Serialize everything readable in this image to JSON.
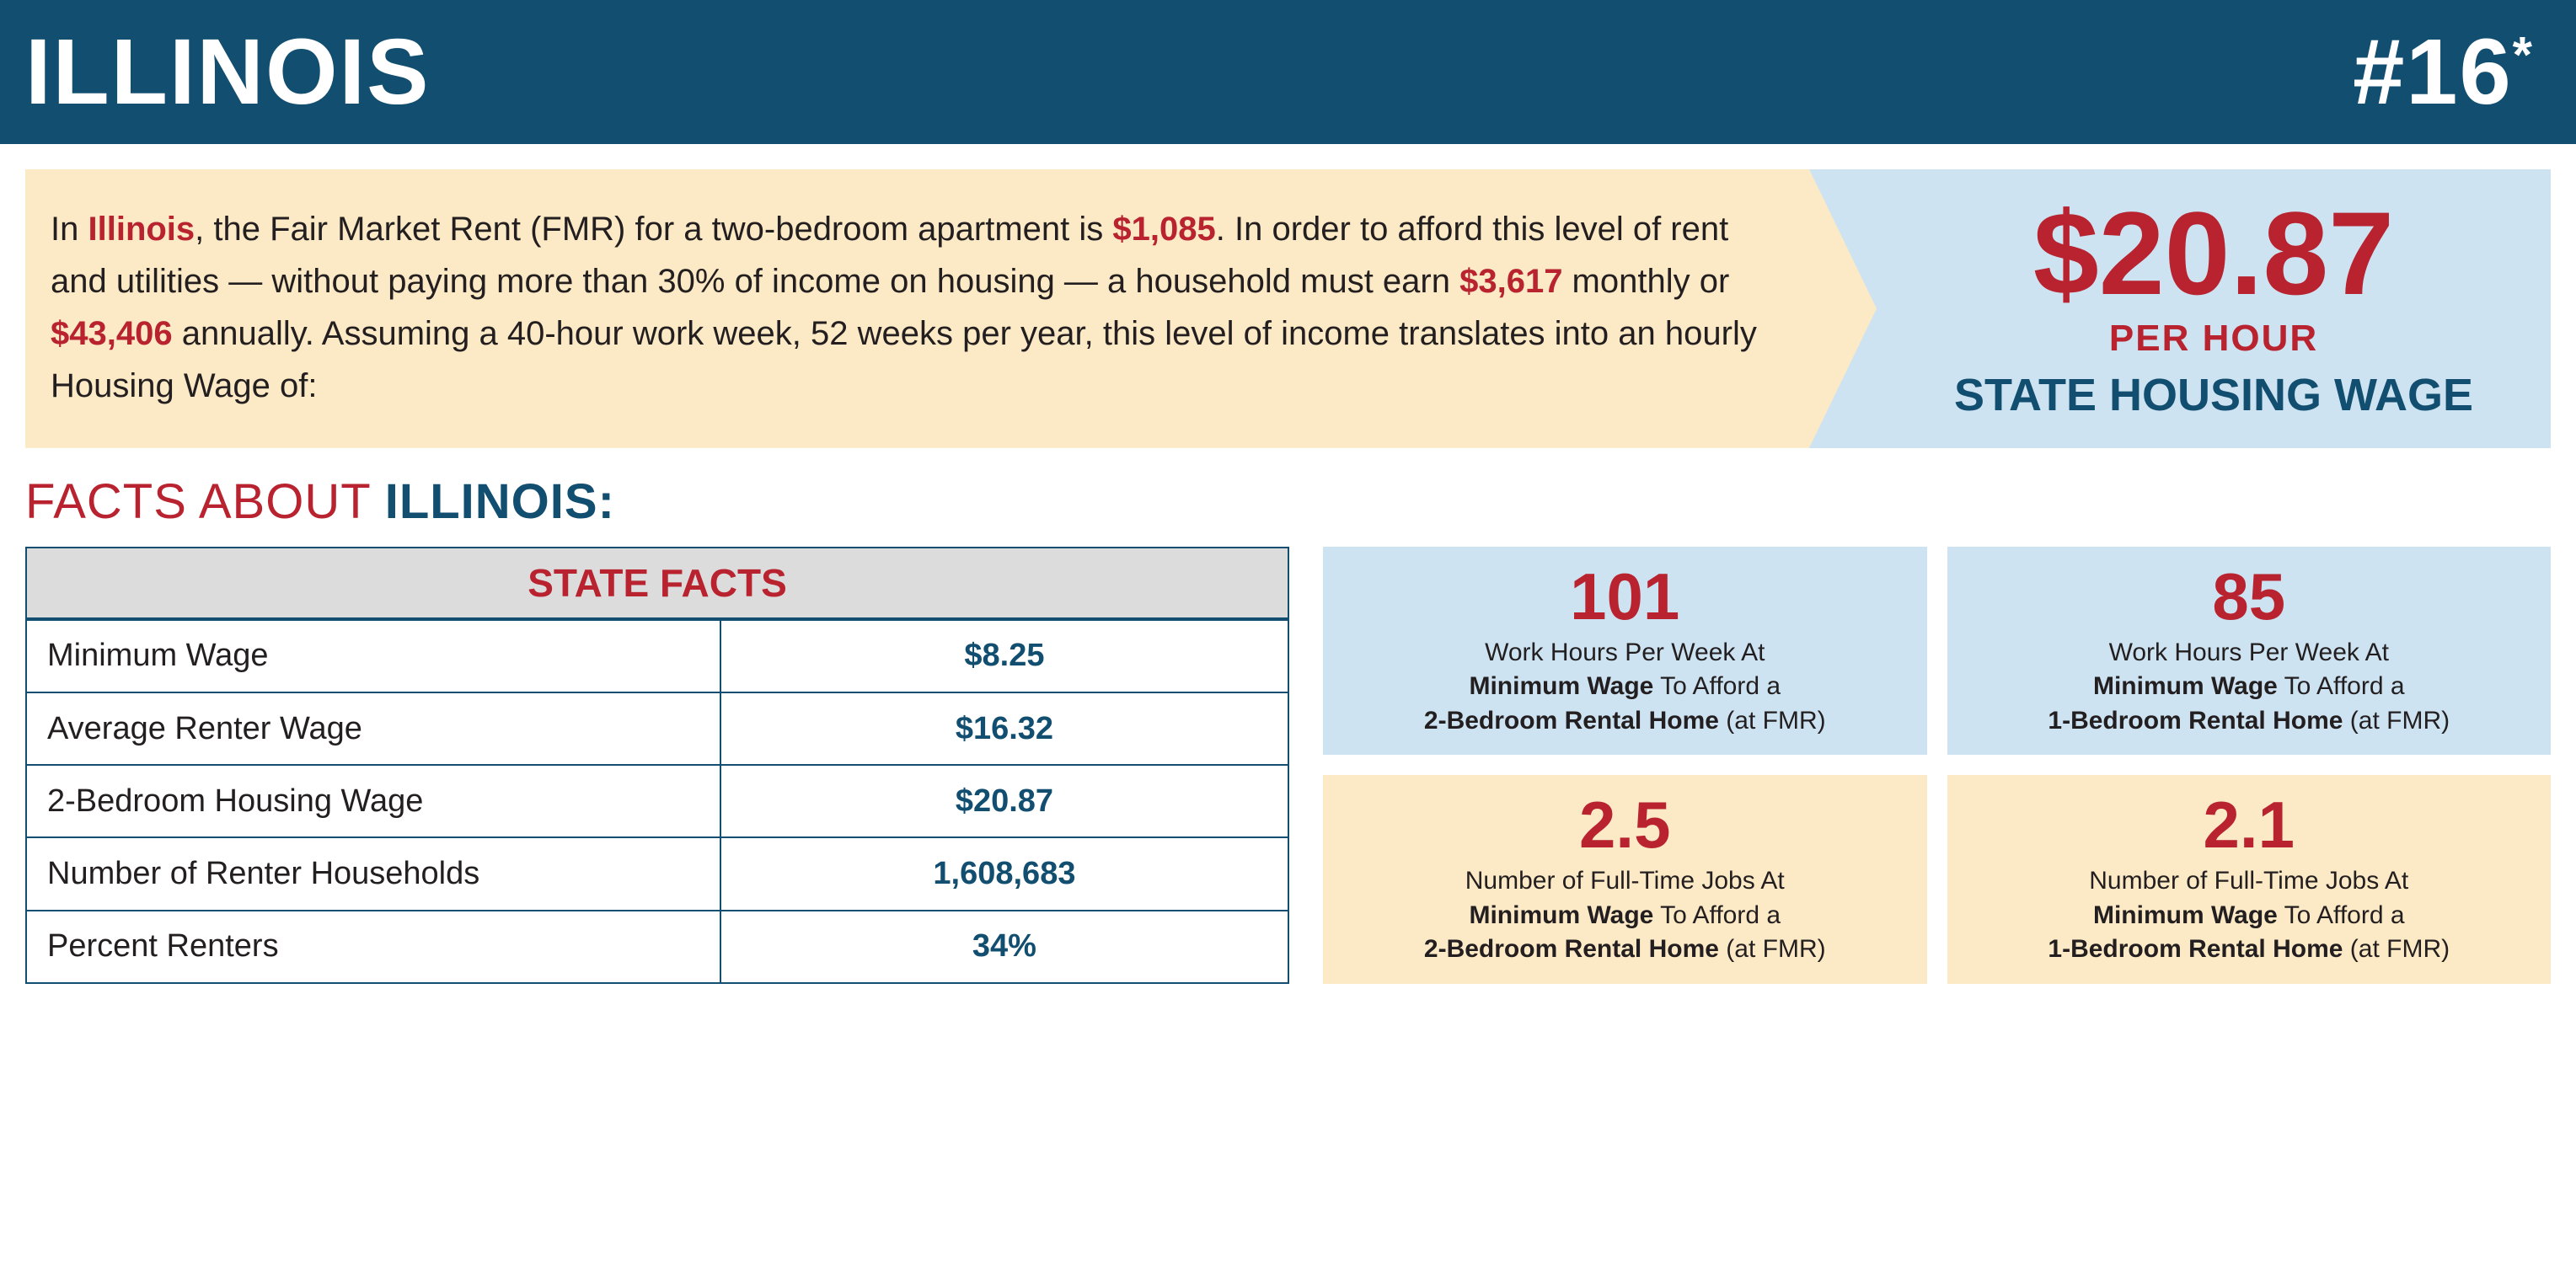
{
  "header": {
    "state": "ILLINOIS",
    "rank": "#16",
    "rank_suffix": "*"
  },
  "colors": {
    "header_bg": "#114e70",
    "accent_red": "#b8232f",
    "cream": "#fce9c5",
    "light_blue": "#cde3f1",
    "body_text": "#231f20",
    "table_header_bg": "#dcdcdc"
  },
  "summary": {
    "state_inline": "Illinois",
    "line1_pre": "In ",
    "line1_mid": ", the Fair Market Rent (FMR) for a two-bedroom apartment is ",
    "fmr": "$1,085",
    "line1_post": ".",
    "line2_pre": "In order to afford this level of rent and utilities — without paying more than 30% of income on housing — a household must earn ",
    "monthly": "$3,617",
    "line2_mid": " monthly or ",
    "annual": "$43,406",
    "line2_post": " annually. Assuming a 40-hour work week, 52 weeks per year, this level of income translates into an hourly Housing Wage of:"
  },
  "wage": {
    "amount": "$20.87",
    "per": "PER HOUR",
    "label": "STATE HOUSING WAGE"
  },
  "facts_heading": {
    "prefix": "FACTS ABOUT ",
    "state": "ILLINOIS:"
  },
  "state_facts": {
    "title": "STATE FACTS",
    "rows": [
      {
        "label": "Minimum Wage",
        "value": "$8.25"
      },
      {
        "label": "Average Renter Wage",
        "value": "$16.32"
      },
      {
        "label": "2-Bedroom Housing Wage",
        "value": "$20.87"
      },
      {
        "label": "Number of Renter Households",
        "value": "1,608,683"
      },
      {
        "label": "Percent Renters",
        "value": "34%"
      }
    ]
  },
  "stat_cards": [
    {
      "bg": "blue",
      "number": "101",
      "desc_pre": "Work Hours Per Week At",
      "desc_bold1": "Minimum Wage",
      "desc_mid": " To Afford a",
      "desc_bold2": "2-Bedroom Rental Home",
      "desc_post": " (at FMR)"
    },
    {
      "bg": "blue",
      "number": "85",
      "desc_pre": "Work Hours Per Week At",
      "desc_bold1": "Minimum Wage",
      "desc_mid": " To Afford a",
      "desc_bold2": "1-Bedroom Rental Home",
      "desc_post": " (at FMR)"
    },
    {
      "bg": "cream",
      "number": "2.5",
      "desc_pre": "Number of Full-Time Jobs At",
      "desc_bold1": "Minimum Wage",
      "desc_mid": " To Afford a",
      "desc_bold2": "2-Bedroom Rental Home",
      "desc_post": " (at FMR)"
    },
    {
      "bg": "cream",
      "number": "2.1",
      "desc_pre": "Number of Full-Time Jobs At",
      "desc_bold1": "Minimum Wage",
      "desc_mid": " To Afford a",
      "desc_bold2": "1-Bedroom Rental Home",
      "desc_post": " (at FMR)"
    }
  ]
}
